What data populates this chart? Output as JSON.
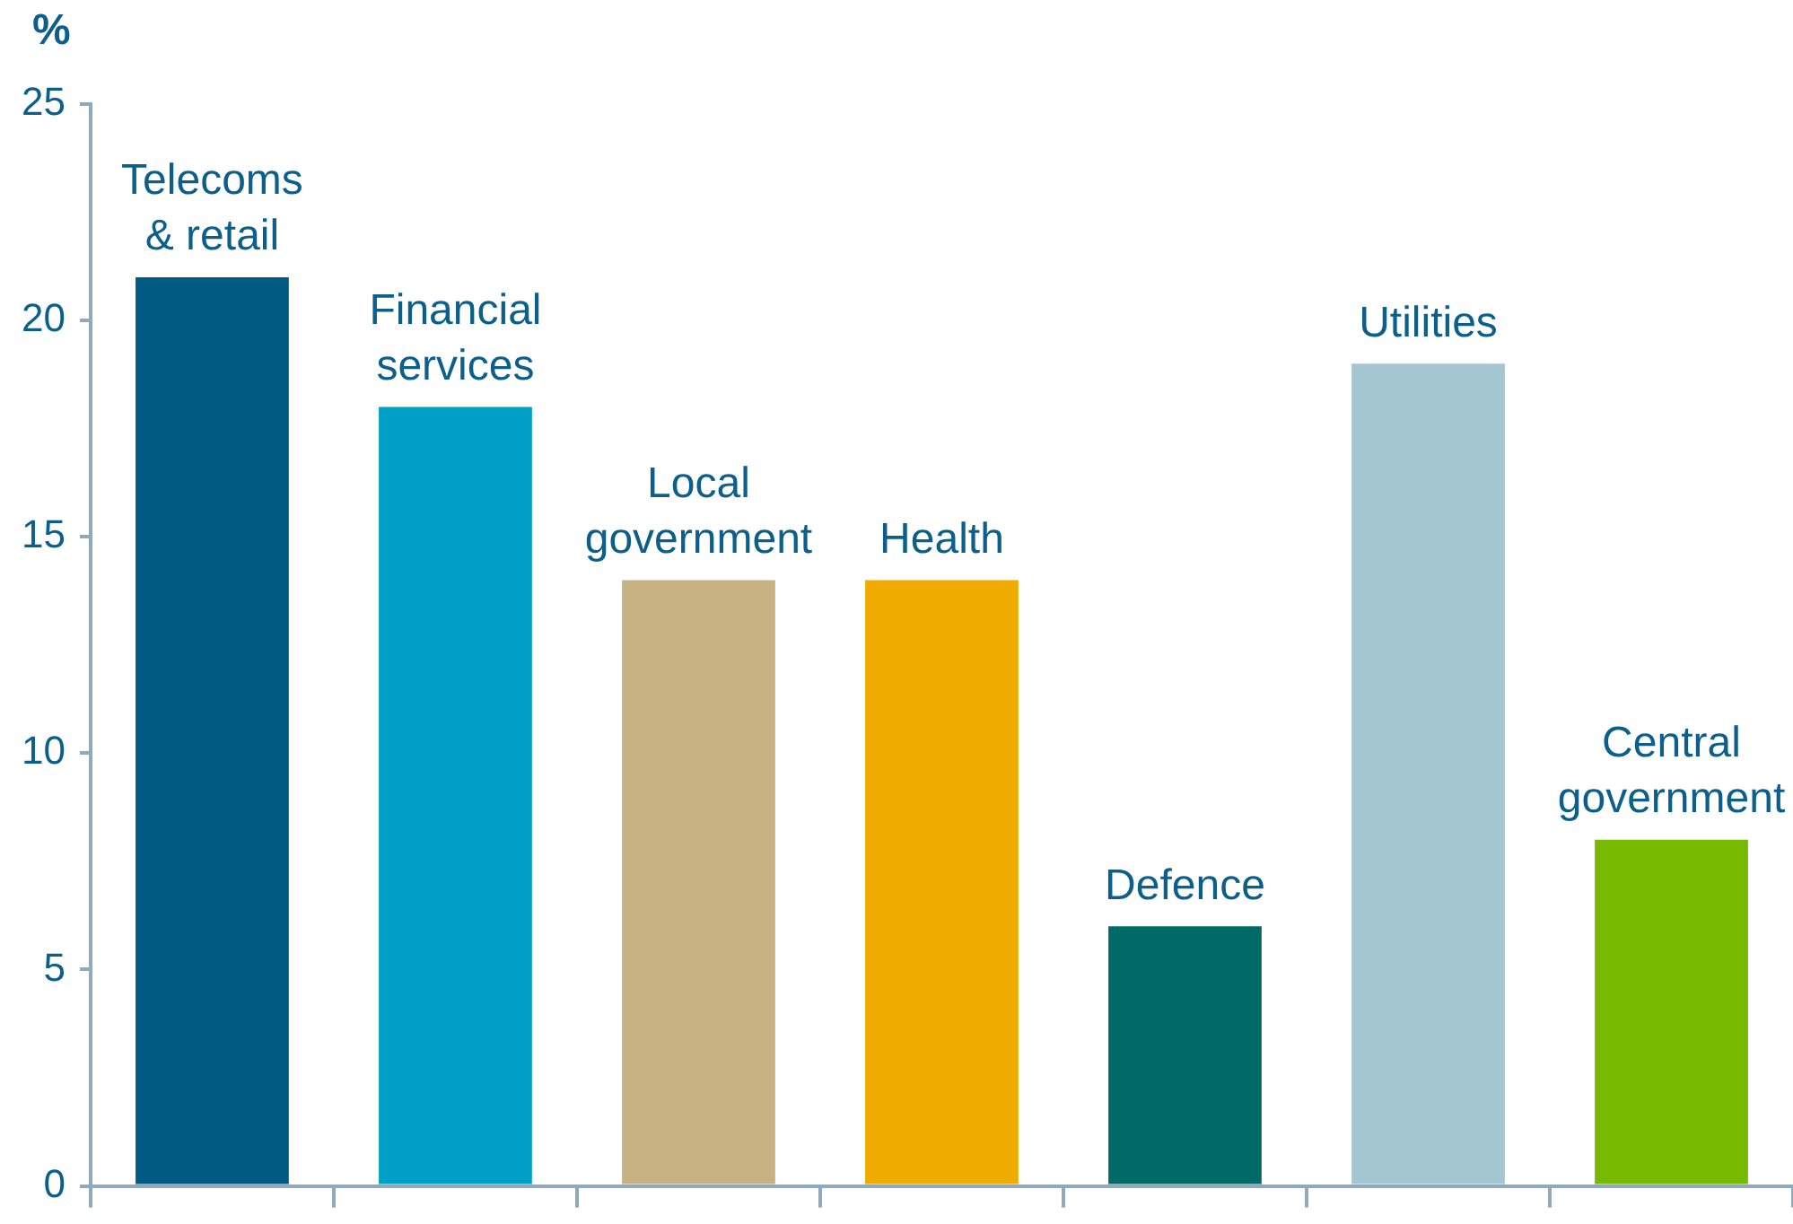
{
  "chart_data": {
    "type": "bar",
    "ylabel": "%",
    "categories": [
      "Telecoms\n& retail",
      "Financial\nservices",
      "Local\ngovernment",
      "Health",
      "Defence",
      "Utilities",
      "Central\ngovernment"
    ],
    "values": [
      21,
      18,
      14,
      14,
      6,
      19,
      8
    ],
    "colors": [
      "#005a82",
      "#00a0c6",
      "#c8b183",
      "#f0ab00",
      "#006a66",
      "#a3c6d0",
      "#76b900"
    ],
    "ylim": [
      0,
      25
    ],
    "yticks": [
      0,
      5,
      10,
      15,
      20,
      25
    ],
    "grid": false,
    "tick_labels": "y"
  }
}
